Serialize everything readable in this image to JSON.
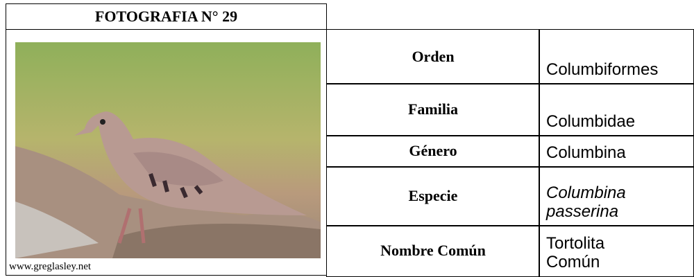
{
  "header": {
    "title": "FOTOGRAFIA N° 29"
  },
  "image": {
    "credit": "www.greglasley.net"
  },
  "table": {
    "rows": [
      [
        "Orden",
        "Columbiformes"
      ],
      [
        "Familia",
        "Columbidae"
      ],
      [
        "Género",
        "Columbina"
      ],
      [
        "Especie",
        "Columbina passerina"
      ],
      [
        "Nombre Común",
        "Tortolita Común"
      ]
    ]
  }
}
